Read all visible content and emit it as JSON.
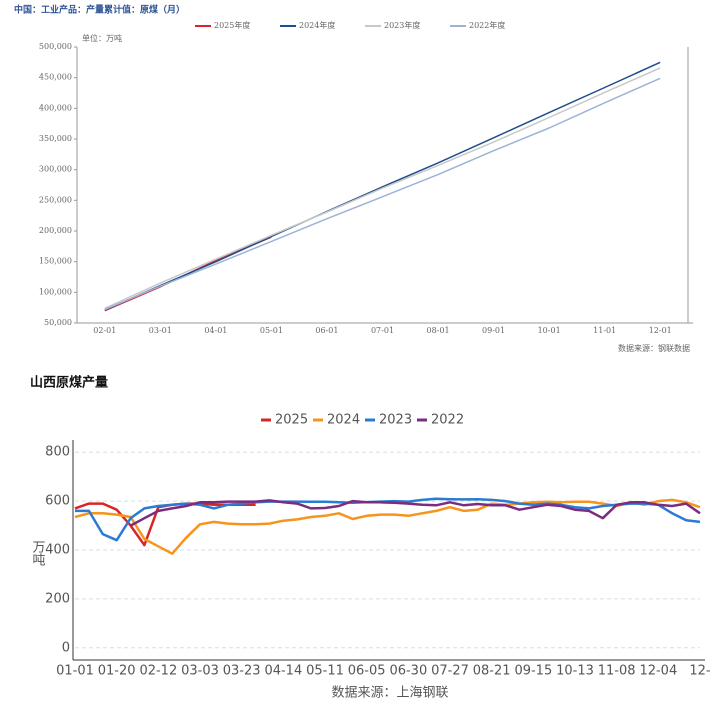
{
  "chart_data": [
    {
      "type": "line",
      "title": "中国：工业产品：产量累计值：原煤（月）",
      "unit_label": "单位：万吨",
      "source": "数据来源：钢联数据",
      "categories": [
        "02-01",
        "03-01",
        "04-01",
        "05-01",
        "06-01",
        "07-01",
        "08-01",
        "09-01",
        "10-01",
        "11-01",
        "12-01"
      ],
      "series": [
        {
          "name": "2025年度",
          "color": "#d9232d",
          "values": [
            70000,
            109000,
            152000,
            190000,
            null,
            null,
            null,
            null,
            null,
            null,
            null
          ]
        },
        {
          "name": "2024年度",
          "color": "#1f4e8c",
          "values": [
            71000,
            111000,
            150000,
            191000,
            232000,
            272000,
            311000,
            352000,
            393000,
            434000,
            475000
          ]
        },
        {
          "name": "2023年度",
          "color": "#c8c8c8",
          "values": [
            74000,
            115000,
            154000,
            193000,
            231000,
            270000,
            307000,
            345000,
            385000,
            426000,
            466000
          ]
        },
        {
          "name": "2022年度",
          "color": "#9db3d6",
          "values": [
            72000,
            110000,
            146000,
            183000,
            220000,
            256000,
            292000,
            331000,
            368000,
            409000,
            449000
          ]
        }
      ],
      "ylim": [
        50000,
        500000
      ],
      "yticks": [
        {
          "value": 50000,
          "label": "50,000"
        },
        {
          "value": 100000,
          "label": "100,000"
        },
        {
          "value": 150000,
          "label": "150,000"
        },
        {
          "value": 200000,
          "label": "200,000"
        },
        {
          "value": 250000,
          "label": "250,000"
        },
        {
          "value": 300000,
          "label": "300,000"
        },
        {
          "value": 350000,
          "label": "350,000"
        },
        {
          "value": 400000,
          "label": "400,000"
        },
        {
          "value": 450000,
          "label": "450,000"
        },
        {
          "value": 500000,
          "label": "500,000"
        }
      ],
      "grid": false,
      "legend": "top"
    },
    {
      "type": "line",
      "title": "山西原煤产量",
      "y_label": "万吨",
      "source": "数据来源：上海钢联",
      "categories": [
        "01-01",
        null,
        null,
        "01-20",
        null,
        null,
        "02-12",
        null,
        null,
        "03-03",
        null,
        null,
        "03-23",
        null,
        null,
        "04-14",
        null,
        null,
        "05-11",
        null,
        null,
        "06-05",
        null,
        null,
        "06-30",
        null,
        null,
        "07-27",
        null,
        null,
        "08-21",
        null,
        null,
        "09-15",
        null,
        null,
        "10-13",
        null,
        null,
        "11-08",
        null,
        null,
        "12-04",
        null,
        null,
        "12-"
      ],
      "series": [
        {
          "name": "2025",
          "color": "#d62728",
          "values": [
            570,
            590,
            590,
            565,
            500,
            420,
            575,
            585,
            590,
            590,
            585,
            585,
            585,
            585,
            null,
            null,
            null,
            null,
            null,
            null,
            null,
            null,
            null,
            null,
            null,
            null,
            null,
            null,
            null,
            null,
            null,
            null,
            null,
            null,
            null,
            null,
            null,
            null,
            null,
            null,
            null,
            null,
            null,
            null,
            null,
            null
          ]
        },
        {
          "name": "2024",
          "color": "#f7941d",
          "values": [
            535,
            550,
            550,
            545,
            535,
            445,
            415,
            385,
            450,
            505,
            515,
            508,
            505,
            505,
            508,
            520,
            525,
            535,
            540,
            550,
            527,
            540,
            545,
            545,
            540,
            550,
            560,
            575,
            560,
            565,
            590,
            585,
            590,
            595,
            597,
            595,
            597,
            597,
            590,
            580,
            595,
            585,
            600,
            605,
            595,
            575
          ]
        },
        {
          "name": "2023",
          "color": "#2b7bd3",
          "values": [
            560,
            560,
            465,
            440,
            530,
            570,
            580,
            585,
            590,
            585,
            570,
            585,
            590,
            595,
            598,
            598,
            598,
            597,
            597,
            595,
            593,
            596,
            598,
            600,
            598,
            605,
            610,
            608,
            607,
            608,
            605,
            600,
            590,
            585,
            590,
            585,
            575,
            570,
            580,
            585,
            590,
            590,
            585,
            550,
            522,
            515
          ]
        },
        {
          "name": "2022",
          "color": "#7b2c7f",
          "values": [
            null,
            null,
            null,
            null,
            500,
            530,
            560,
            570,
            580,
            595,
            595,
            598,
            598,
            598,
            603,
            595,
            590,
            570,
            572,
            580,
            600,
            595,
            595,
            593,
            590,
            585,
            583,
            595,
            583,
            588,
            583,
            583,
            565,
            575,
            585,
            580,
            565,
            560,
            530,
            585,
            595,
            595,
            585,
            580,
            590,
            550
          ]
        }
      ],
      "ylim": [
        -50,
        850
      ],
      "yticks": [
        0,
        200,
        400,
        600,
        800
      ],
      "grid": true,
      "legend": "top"
    }
  ]
}
